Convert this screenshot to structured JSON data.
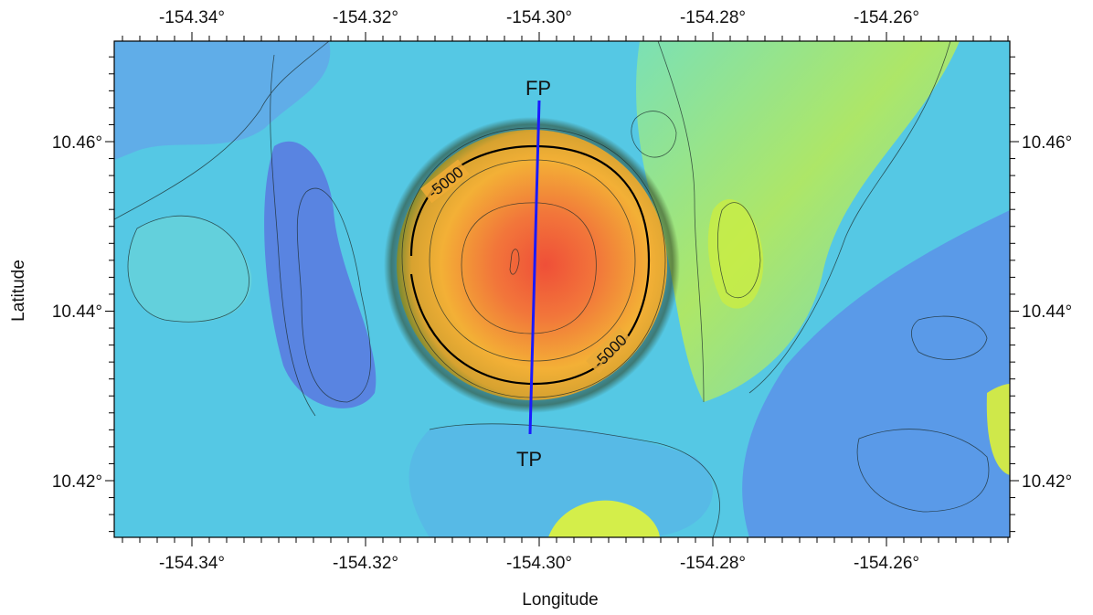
{
  "map": {
    "x_axis_title": "Longitude",
    "y_axis_title": "Latitude",
    "x_ticks": [
      "-154.34°",
      "-154.32°",
      "-154.30°",
      "-154.28°",
      "-154.26°"
    ],
    "y_ticks": [
      "10.46°",
      "10.44°",
      "10.42°"
    ],
    "contour_labels": [
      "-5000",
      "-5000"
    ],
    "profile": {
      "start_label": "FP",
      "end_label": "TP",
      "color": "#1a1aff"
    },
    "colors": {
      "deep": "#5a86e8",
      "mid": "#52c7e6",
      "shallow_ridge": "#9fe36a",
      "ridge_yellow": "#d8ef4a",
      "seamount_orange": "#f0a532",
      "seamount_peak": "#ef5a3a"
    }
  }
}
